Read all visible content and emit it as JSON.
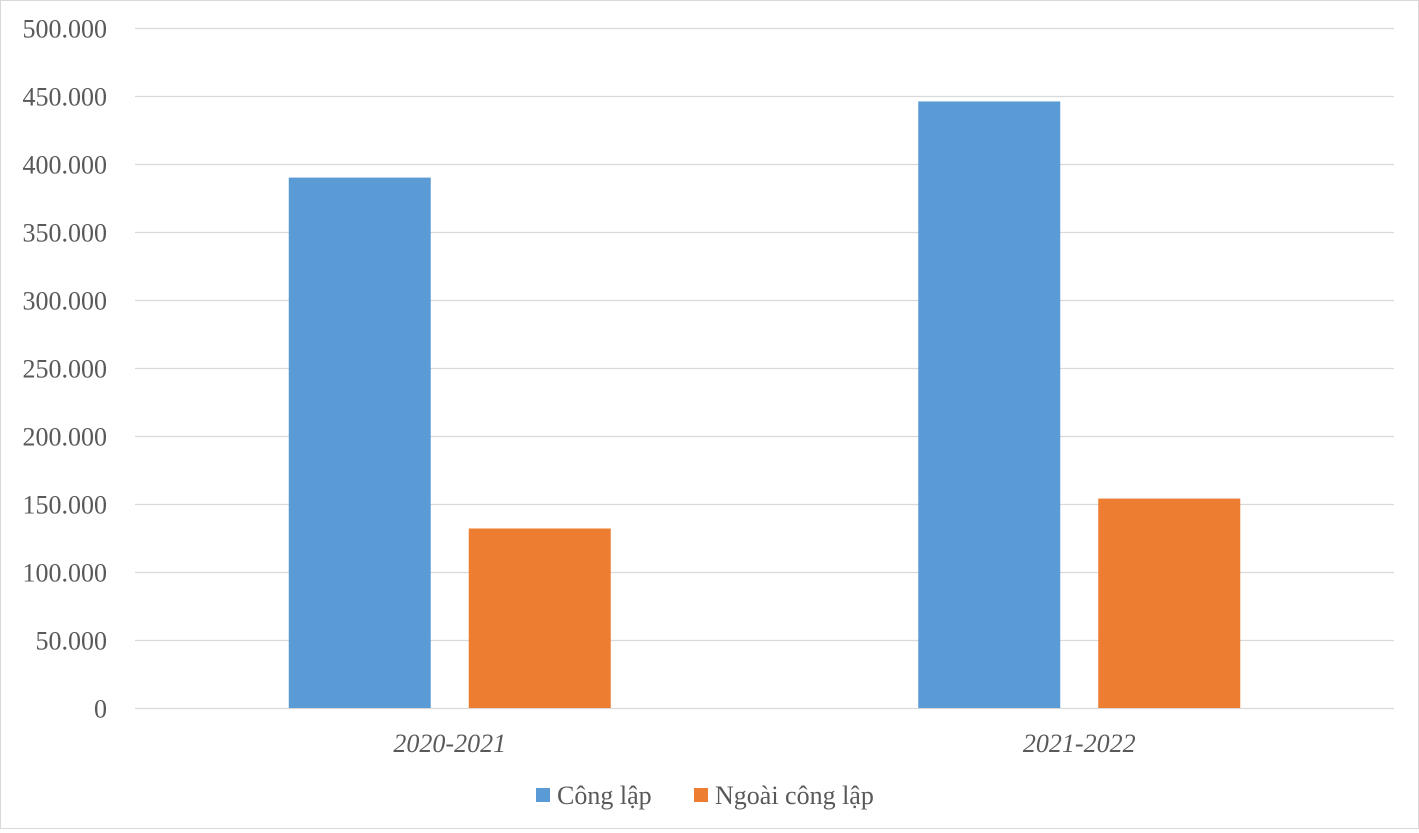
{
  "chart_data": {
    "type": "bar",
    "categories": [
      "2020-2021",
      "2021-2022"
    ],
    "series": [
      {
        "name": "Công lập",
        "values": [
          390000,
          446000
        ],
        "color": "#5b9bd5"
      },
      {
        "name": "Ngoài công lập",
        "values": [
          132000,
          154000
        ],
        "color": "#ed7d31"
      }
    ],
    "ylim": [
      0,
      500000
    ],
    "yticks": [
      0,
      50000,
      100000,
      150000,
      200000,
      250000,
      300000,
      350000,
      400000,
      450000,
      500000
    ],
    "ytick_labels": [
      "0",
      "50.000",
      "100.000",
      "150.000",
      "200.000",
      "250.000",
      "300.000",
      "350.000",
      "400.000",
      "450.000",
      "500.000"
    ],
    "title": "",
    "xlabel": "",
    "ylabel": "",
    "grid": true,
    "legend_position": "bottom",
    "gridline_color": "#d9d9d9",
    "text_color": "#595959"
  }
}
